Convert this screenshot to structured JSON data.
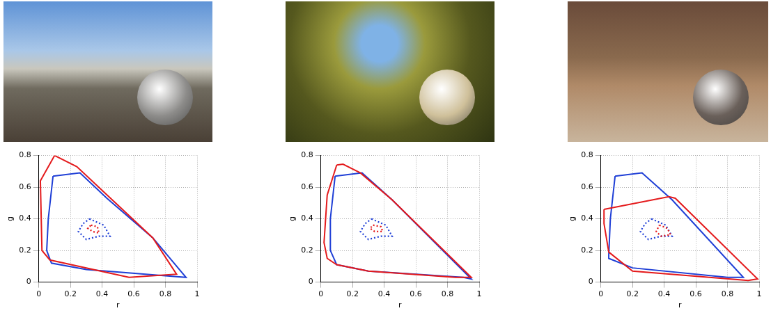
{
  "chart_data": [
    {
      "type": "scatter",
      "x_label": "r",
      "y_label": "g",
      "xlim": [
        0,
        1
      ],
      "xticks": [
        0,
        0.2,
        0.4,
        0.6,
        0.8,
        1
      ],
      "ylim": [
        0,
        0.8
      ],
      "yticks": [
        0,
        0.2,
        0.4,
        0.6,
        0.8
      ],
      "grid": true,
      "series": [
        {
          "type": "polygon",
          "color": "#e41a1c",
          "line_style": "solid",
          "x": [
            0.1,
            0.24,
            0.72,
            0.87,
            0.57,
            0.07,
            0.02,
            0.01
          ],
          "values": [
            0.8,
            0.73,
            0.28,
            0.05,
            0.03,
            0.14,
            0.2,
            0.64
          ]
        },
        {
          "type": "polygon",
          "color": "#1f3fd6",
          "line_style": "solid",
          "x": [
            0.09,
            0.26,
            0.43,
            0.72,
            0.93,
            0.8,
            0.3,
            0.08,
            0.05,
            0.06
          ],
          "values": [
            0.67,
            0.69,
            0.53,
            0.28,
            0.03,
            0.04,
            0.08,
            0.12,
            0.2,
            0.4
          ]
        },
        {
          "type": "polygon",
          "color": "#e41a1c",
          "line_style": "dotted",
          "x": [
            0.33,
            0.37,
            0.38,
            0.34,
            0.31
          ],
          "values": [
            0.36,
            0.35,
            0.31,
            0.32,
            0.34
          ]
        },
        {
          "type": "polygon",
          "color": "#1f3fd6",
          "line_style": "dotted",
          "x": [
            0.32,
            0.41,
            0.45,
            0.38,
            0.3,
            0.27,
            0.25,
            0.28
          ],
          "values": [
            0.4,
            0.36,
            0.29,
            0.29,
            0.27,
            0.3,
            0.32,
            0.37
          ]
        }
      ]
    },
    {
      "type": "scatter",
      "x_label": "r",
      "y_label": "g",
      "xlim": [
        0,
        1
      ],
      "xticks": [
        0,
        0.2,
        0.4,
        0.6,
        0.8,
        1
      ],
      "ylim": [
        0,
        0.8
      ],
      "yticks": [
        0,
        0.2,
        0.4,
        0.6,
        0.8
      ],
      "grid": true,
      "series": [
        {
          "type": "polygon",
          "color": "#e41a1c",
          "line_style": "solid",
          "x": [
            0.1,
            0.14,
            0.25,
            0.45,
            0.95,
            0.85,
            0.3,
            0.1,
            0.04,
            0.02,
            0.04
          ],
          "values": [
            0.74,
            0.745,
            0.69,
            0.52,
            0.03,
            0.03,
            0.07,
            0.11,
            0.15,
            0.25,
            0.55
          ]
        },
        {
          "type": "polygon",
          "color": "#1f3fd6",
          "line_style": "solid",
          "x": [
            0.09,
            0.26,
            0.45,
            0.95,
            0.9,
            0.3,
            0.1,
            0.06,
            0.06
          ],
          "values": [
            0.67,
            0.69,
            0.52,
            0.02,
            0.03,
            0.07,
            0.11,
            0.2,
            0.4
          ]
        },
        {
          "type": "polygon",
          "color": "#e41a1c",
          "line_style": "dotted",
          "x": [
            0.33,
            0.38,
            0.39,
            0.34,
            0.31
          ],
          "values": [
            0.36,
            0.35,
            0.32,
            0.32,
            0.34
          ]
        },
        {
          "type": "polygon",
          "color": "#1f3fd6",
          "line_style": "dotted",
          "x": [
            0.32,
            0.41,
            0.45,
            0.38,
            0.3,
            0.27,
            0.25,
            0.28
          ],
          "values": [
            0.4,
            0.36,
            0.29,
            0.29,
            0.27,
            0.3,
            0.32,
            0.37
          ]
        }
      ]
    },
    {
      "type": "scatter",
      "x_label": "r",
      "y_label": "g",
      "xlim": [
        0,
        1
      ],
      "xticks": [
        0,
        0.2,
        0.4,
        0.6,
        0.8,
        1
      ],
      "ylim": [
        0,
        0.8
      ],
      "yticks": [
        0,
        0.2,
        0.4,
        0.6,
        0.8
      ],
      "grid": true,
      "series": [
        {
          "type": "polygon",
          "color": "#e41a1c",
          "line_style": "solid",
          "x": [
            0.02,
            0.43,
            0.47,
            0.99,
            0.93,
            0.2,
            0.05,
            0.02
          ],
          "values": [
            0.46,
            0.54,
            0.53,
            0.02,
            0.01,
            0.07,
            0.19,
            0.37
          ]
        },
        {
          "type": "polygon",
          "color": "#1f3fd6",
          "line_style": "solid",
          "x": [
            0.09,
            0.26,
            0.45,
            0.9,
            0.8,
            0.2,
            0.05,
            0.05,
            0.06
          ],
          "values": [
            0.67,
            0.69,
            0.52,
            0.03,
            0.03,
            0.09,
            0.15,
            0.17,
            0.4
          ]
        },
        {
          "type": "polygon",
          "color": "#e41a1c",
          "line_style": "dotted",
          "x": [
            0.37,
            0.42,
            0.44,
            0.38,
            0.35
          ],
          "values": [
            0.36,
            0.34,
            0.3,
            0.29,
            0.32
          ]
        },
        {
          "type": "polygon",
          "color": "#1f3fd6",
          "line_style": "dotted",
          "x": [
            0.32,
            0.41,
            0.45,
            0.38,
            0.3,
            0.27,
            0.25,
            0.28
          ],
          "values": [
            0.4,
            0.36,
            0.29,
            0.29,
            0.27,
            0.3,
            0.32,
            0.37
          ]
        }
      ]
    }
  ]
}
